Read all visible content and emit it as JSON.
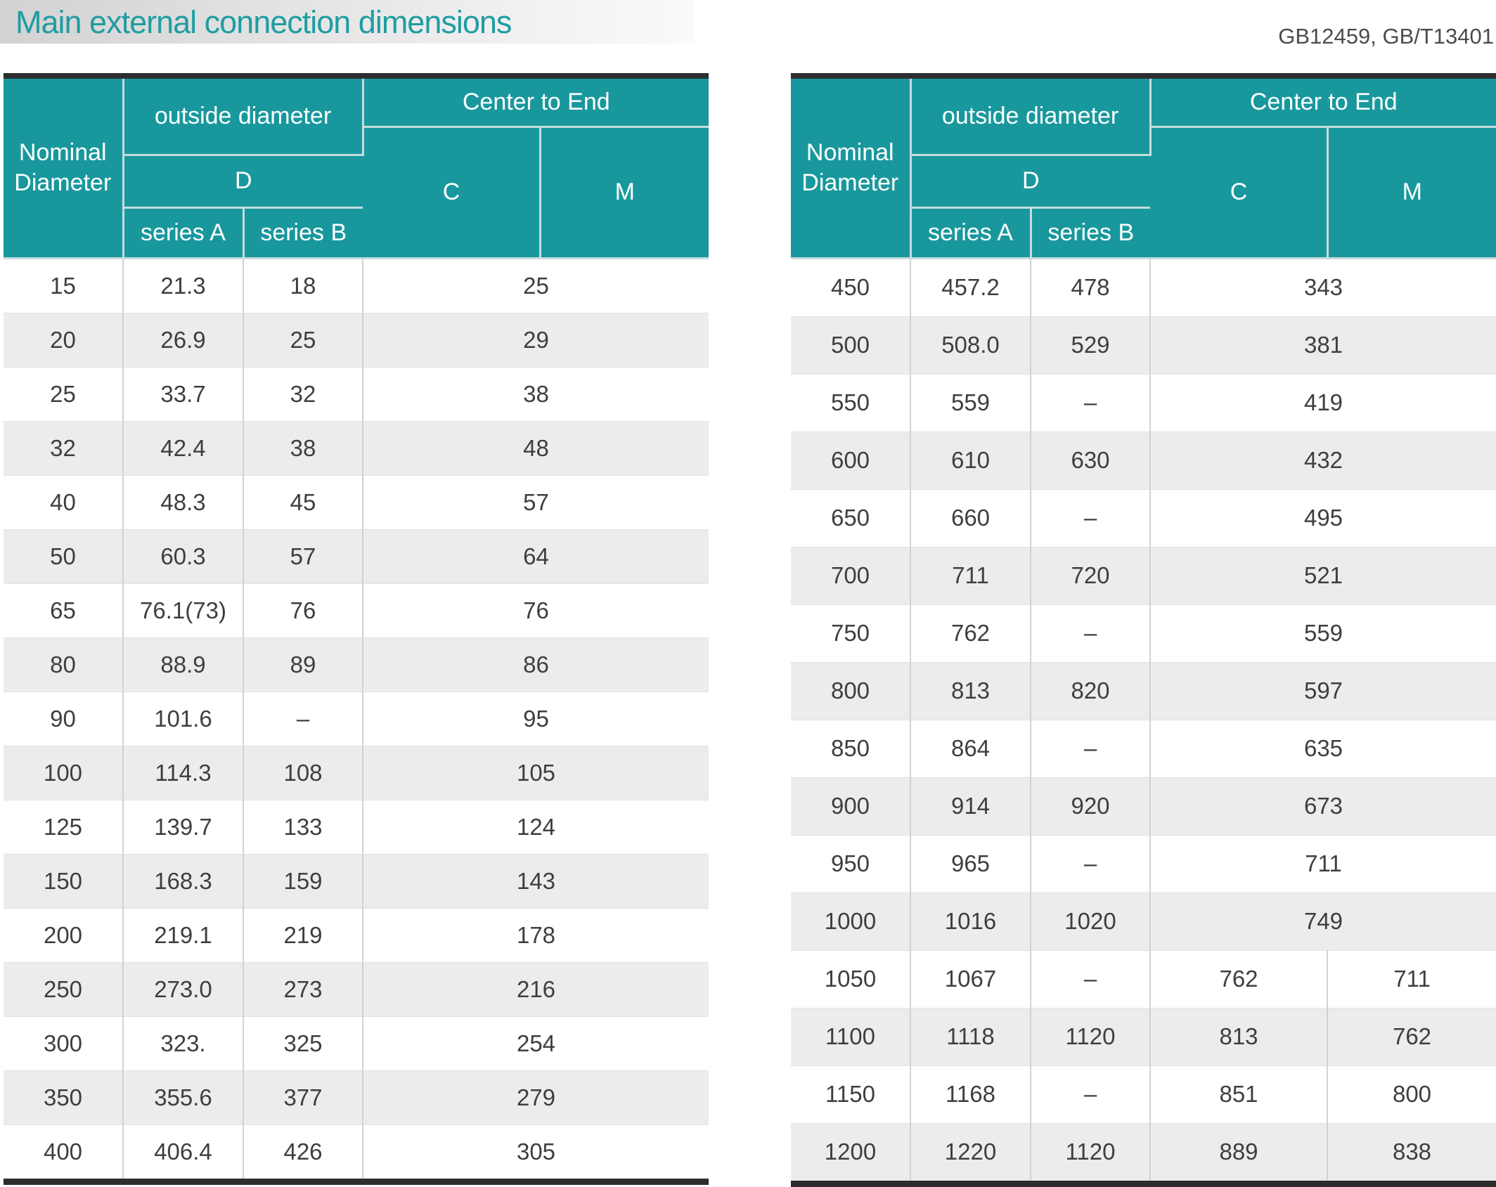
{
  "page": {
    "title": "Main external connection dimensions",
    "standards": "GB12459, GB/T13401"
  },
  "colors": {
    "header_teal": "#18989d",
    "title_teal": "#1f9da2",
    "row_alt_gray": "#ececec",
    "outer_border_dark": "#2d2d2d",
    "header_grid_line": "#c6dcdd"
  },
  "header_labels": {
    "nominal_diameter": "Nominal Diameter",
    "outside_diameter": "outside diameter",
    "d": "D",
    "series_a": "series A",
    "series_b": "series B",
    "center_to_end": "Center to End",
    "c": "C",
    "m": "M"
  },
  "tables": [
    {
      "name": "left",
      "rows": [
        {
          "nominal": "15",
          "series_a": "21.3",
          "series_b": "18",
          "cm": "25"
        },
        {
          "nominal": "20",
          "series_a": "26.9",
          "series_b": "25",
          "cm": "29"
        },
        {
          "nominal": "25",
          "series_a": "33.7",
          "series_b": "32",
          "cm": "38"
        },
        {
          "nominal": "32",
          "series_a": "42.4",
          "series_b": "38",
          "cm": "48"
        },
        {
          "nominal": "40",
          "series_a": "48.3",
          "series_b": "45",
          "cm": "57"
        },
        {
          "nominal": "50",
          "series_a": "60.3",
          "series_b": "57",
          "cm": "64"
        },
        {
          "nominal": "65",
          "series_a": "76.1(73)",
          "series_b": "76",
          "cm": "76"
        },
        {
          "nominal": "80",
          "series_a": "88.9",
          "series_b": "89",
          "cm": "86"
        },
        {
          "nominal": "90",
          "series_a": "101.6",
          "series_b": "–",
          "cm": "95"
        },
        {
          "nominal": "100",
          "series_a": "114.3",
          "series_b": "108",
          "cm": "105"
        },
        {
          "nominal": "125",
          "series_a": "139.7",
          "series_b": "133",
          "cm": "124"
        },
        {
          "nominal": "150",
          "series_a": "168.3",
          "series_b": "159",
          "cm": "143"
        },
        {
          "nominal": "200",
          "series_a": "219.1",
          "series_b": "219",
          "cm": "178"
        },
        {
          "nominal": "250",
          "series_a": "273.0",
          "series_b": "273",
          "cm": "216"
        },
        {
          "nominal": "300",
          "series_a": "323.",
          "series_b": "325",
          "cm": "254"
        },
        {
          "nominal": "350",
          "series_a": "355.6",
          "series_b": "377",
          "cm": "279"
        },
        {
          "nominal": "400",
          "series_a": "406.4",
          "series_b": "426",
          "cm": "305"
        }
      ]
    },
    {
      "name": "right",
      "rows": [
        {
          "nominal": "450",
          "series_a": "457.2",
          "series_b": "478",
          "cm": "343"
        },
        {
          "nominal": "500",
          "series_a": "508.0",
          "series_b": "529",
          "cm": "381"
        },
        {
          "nominal": "550",
          "series_a": "559",
          "series_b": "–",
          "cm": "419"
        },
        {
          "nominal": "600",
          "series_a": "610",
          "series_b": "630",
          "cm": "432"
        },
        {
          "nominal": "650",
          "series_a": "660",
          "series_b": "–",
          "cm": "495"
        },
        {
          "nominal": "700",
          "series_a": "711",
          "series_b": "720",
          "cm": "521"
        },
        {
          "nominal": "750",
          "series_a": "762",
          "series_b": "–",
          "cm": "559"
        },
        {
          "nominal": "800",
          "series_a": "813",
          "series_b": "820",
          "cm": "597"
        },
        {
          "nominal": "850",
          "series_a": "864",
          "series_b": "–",
          "cm": "635"
        },
        {
          "nominal": "900",
          "series_a": "914",
          "series_b": "920",
          "cm": "673"
        },
        {
          "nominal": "950",
          "series_a": "965",
          "series_b": "–",
          "cm": "711"
        },
        {
          "nominal": "1000",
          "series_a": "1016",
          "series_b": "1020",
          "cm": "749"
        },
        {
          "nominal": "1050",
          "series_a": "1067",
          "series_b": "–",
          "c": "762",
          "m": "711"
        },
        {
          "nominal": "1100",
          "series_a": "1118",
          "series_b": "1120",
          "c": "813",
          "m": "762"
        },
        {
          "nominal": "1150",
          "series_a": "1168",
          "series_b": "–",
          "c": "851",
          "m": "800"
        },
        {
          "nominal": "1200",
          "series_a": "1220",
          "series_b": "1120",
          "c": "889",
          "m": "838"
        }
      ]
    }
  ]
}
